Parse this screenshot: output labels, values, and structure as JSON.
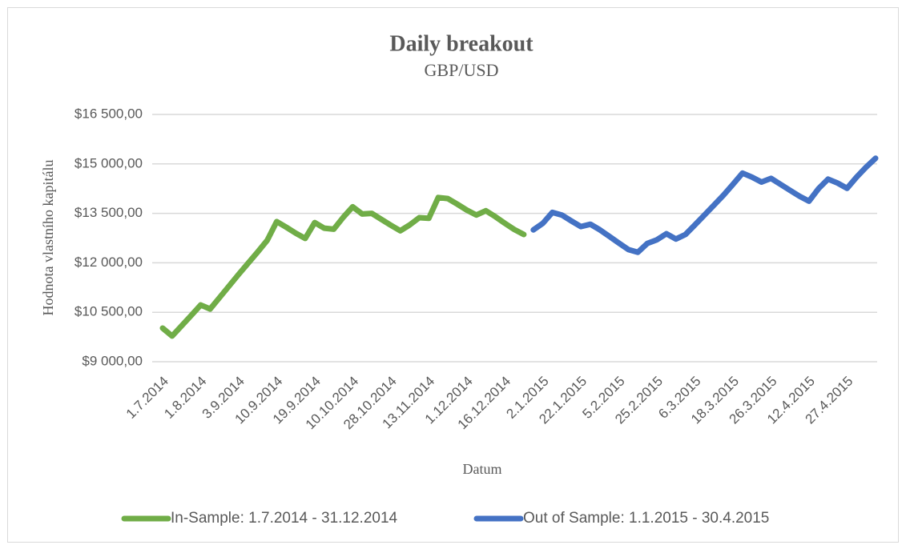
{
  "chart_data": {
    "type": "line",
    "title": "Daily breakout",
    "subtitle": "GBP/USD",
    "x_label": "Datum",
    "y_label": "Hodnota vlastního kapitálu",
    "categories": [
      "1.7.2014",
      null,
      null,
      null,
      "1.8.2014",
      null,
      null,
      null,
      "3.9.2014",
      null,
      null,
      null,
      "10.9.2014",
      null,
      null,
      null,
      "19.9.2014",
      null,
      null,
      null,
      "10.10.2014",
      null,
      null,
      null,
      "28.10.2014",
      null,
      null,
      null,
      "13.11.2014",
      null,
      null,
      null,
      "1.12.2014",
      null,
      null,
      null,
      "16.12.2014",
      null,
      null,
      null,
      "2.1.2015",
      null,
      null,
      null,
      "22.1.2015",
      null,
      null,
      null,
      "5.2.2015",
      null,
      null,
      null,
      "25.2.2015",
      null,
      null,
      null,
      "6.3.2015",
      null,
      null,
      null,
      "18.3.2015",
      null,
      null,
      null,
      "26.3.2015",
      null,
      null,
      null,
      "12.4.2015",
      null,
      null,
      null,
      "27.4.2015",
      null,
      null,
      null
    ],
    "series": [
      {
        "name": "In-Sample: 1.7.2014 - 31.12.2014",
        "color": "#70ad47",
        "values": [
          10020,
          9780,
          10090,
          10400,
          10720,
          10600,
          10950,
          11300,
          11650,
          11990,
          12330,
          12680,
          13250,
          13080,
          12900,
          12740,
          13220,
          13050,
          13020,
          13380,
          13700,
          13480,
          13500,
          13320,
          13140,
          12970,
          13150,
          13370,
          13350,
          13980,
          13950,
          13780,
          13600,
          13450,
          13580,
          13400,
          13200,
          13010,
          12860,
          null,
          null,
          null,
          null,
          null,
          null,
          null,
          null,
          null,
          null,
          null,
          null,
          null,
          null,
          null,
          null,
          null,
          null,
          null,
          null,
          null,
          null,
          null,
          null,
          null,
          null,
          null,
          null,
          null,
          null,
          null,
          null,
          null,
          null,
          null,
          null,
          null
        ]
      },
      {
        "name": "Out of Sample: 1.1.2015 - 30.4.2015",
        "color": "#4472c4",
        "values": [
          null,
          null,
          null,
          null,
          null,
          null,
          null,
          null,
          null,
          null,
          null,
          null,
          null,
          null,
          null,
          null,
          null,
          null,
          null,
          null,
          null,
          null,
          null,
          null,
          null,
          null,
          null,
          null,
          null,
          null,
          null,
          null,
          null,
          null,
          null,
          null,
          null,
          null,
          null,
          13000,
          13200,
          13530,
          13450,
          13270,
          13100,
          13170,
          13000,
          12800,
          12600,
          12400,
          12320,
          12590,
          12700,
          12880,
          12720,
          12860,
          13150,
          13450,
          13750,
          14050,
          14380,
          14720,
          14600,
          14450,
          14560,
          14380,
          14200,
          14020,
          13870,
          14250,
          14540,
          14420,
          14260,
          14600,
          14900,
          15170
        ]
      }
    ],
    "ylim": [
      9000,
      16500
    ],
    "yticks": [
      {
        "value": 9000,
        "label": "$9 000,00"
      },
      {
        "value": 10500,
        "label": "$10 500,00"
      },
      {
        "value": 12000,
        "label": "$12 000,00"
      },
      {
        "value": 13500,
        "label": "$13 500,00"
      },
      {
        "value": 15000,
        "label": "$15 000,00"
      },
      {
        "value": 16500,
        "label": "$16 500,00"
      }
    ],
    "grid": true,
    "legend": "bottom"
  }
}
